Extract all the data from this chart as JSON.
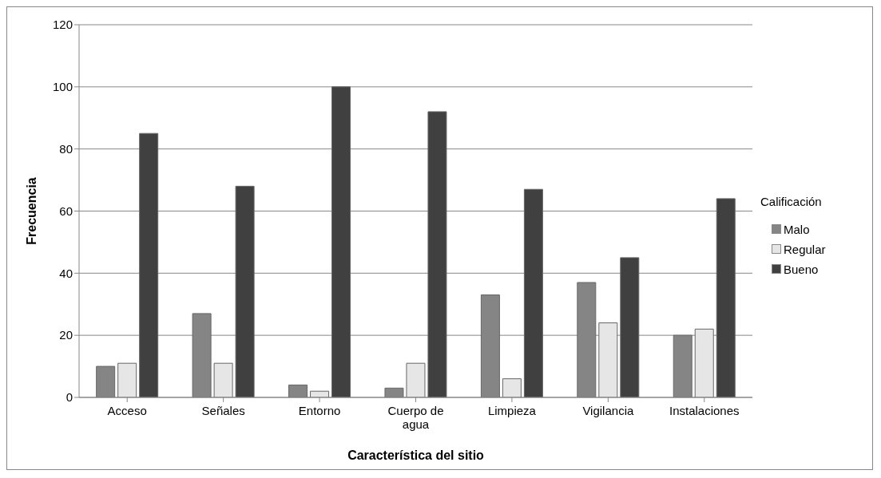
{
  "chart_data": {
    "type": "bar",
    "xlabel": "Característica del sitio",
    "ylabel": "Frecuencia",
    "legend_title": "Calificación",
    "categories": [
      "Acceso",
      "Señales",
      "Entorno",
      "Cuerpo de agua",
      "Limpieza",
      "Vigilancia",
      "Instalaciones"
    ],
    "series": [
      {
        "name": "Malo",
        "color": "#858585",
        "values": [
          10,
          27,
          4,
          3,
          33,
          37,
          20
        ]
      },
      {
        "name": "Regular",
        "color": "#e6e6e6",
        "values": [
          11,
          11,
          2,
          11,
          6,
          24,
          22
        ]
      },
      {
        "name": "Bueno",
        "color": "#404040",
        "values": [
          85,
          68,
          100,
          92,
          67,
          45,
          64
        ]
      }
    ],
    "ylim": [
      0,
      120
    ],
    "yticks": [
      0,
      20,
      40,
      60,
      80,
      100,
      120
    ],
    "grid": "y",
    "legend": "right"
  }
}
